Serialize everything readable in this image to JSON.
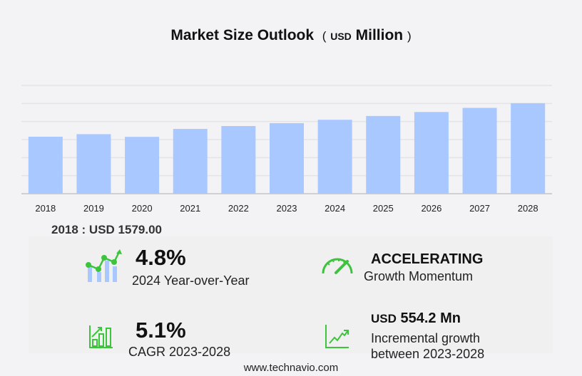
{
  "title": {
    "main": "Market Size Outlook",
    "open": "(",
    "unit": "USD",
    "unit_word": "Million",
    "close": ")"
  },
  "chart_data": {
    "type": "bar",
    "title": "Market Size Outlook (USD Million)",
    "categories": [
      "2018",
      "2019",
      "2020",
      "2021",
      "2022",
      "2023",
      "2024",
      "2025",
      "2026",
      "2027",
      "2028"
    ],
    "values": [
      1579,
      1650,
      1575,
      1795,
      1875,
      1955,
      2049,
      2154,
      2264,
      2379,
      2509
    ],
    "ylim": [
      0,
      3000
    ],
    "grid": true,
    "bar_color": "#a8c8ff"
  },
  "highlight": {
    "label": "2018 : USD  1579.00"
  },
  "stats": {
    "yoy": {
      "value": "4.8%",
      "label": "2024 Year-over-Year",
      "icon": "growth-chart-icon"
    },
    "momentum": {
      "value": "ACCELERATING",
      "label": "Growth Momentum",
      "icon": "speedometer-icon"
    },
    "cagr": {
      "value": "5.1%",
      "label": "CAGR 2023-2028",
      "icon": "bar-chart-up-icon"
    },
    "incremental": {
      "unit": "USD",
      "value": "554.2 Mn",
      "label1": "Incremental growth",
      "label2": "between 2023-2028",
      "icon": "trend-line-icon"
    }
  },
  "footer": "www.technavio.com",
  "colors": {
    "accent_green": "#3cc43c",
    "bar": "#a8c8ff"
  }
}
